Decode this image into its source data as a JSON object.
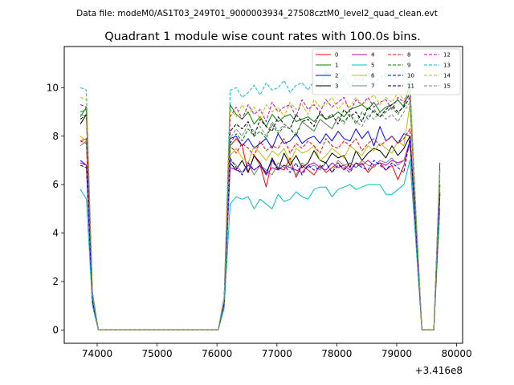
{
  "suptitle": "Data file: modeM0/AS1T03_249T01_9000003934_27508cztM0_level2_quad_clean.evt",
  "chart_data": {
    "type": "line",
    "title": "Quadrant 1 module wise count rates with 100.0s bins.",
    "xlabel": "",
    "ylabel": "",
    "x_offset_label": "+3.416e8",
    "xlim": [
      73450,
      80100
    ],
    "ylim": [
      -0.55,
      11.7
    ],
    "xticks": [
      74000,
      75000,
      76000,
      77000,
      78000,
      79000,
      80000
    ],
    "yticks": [
      0,
      2,
      4,
      6,
      8,
      10
    ],
    "grid": false,
    "legend_position": "top-right",
    "x": [
      73720,
      73820,
      73920,
      74020,
      74120,
      74220,
      74320,
      74420,
      74520,
      74620,
      74720,
      74820,
      74920,
      75020,
      75120,
      75220,
      75320,
      75420,
      75520,
      75620,
      75720,
      75820,
      75920,
      76020,
      76120,
      76220,
      76320,
      76420,
      76520,
      76620,
      76720,
      76820,
      76920,
      77020,
      77120,
      77220,
      77320,
      77420,
      77520,
      77620,
      77720,
      77820,
      77920,
      78020,
      78120,
      78220,
      78320,
      78420,
      78520,
      78620,
      78720,
      78820,
      78920,
      79020,
      79120,
      79220,
      79320,
      79420,
      79520,
      79620,
      79720
    ],
    "series": [
      {
        "name": "0",
        "color": "#ff0000",
        "dash": false,
        "values": [
          7.8,
          7.9,
          1.3,
          0,
          0,
          0,
          0,
          0,
          0,
          0,
          0,
          0,
          0,
          0,
          0,
          0,
          0,
          0,
          0,
          0,
          0,
          0,
          0,
          0,
          1.2,
          7.6,
          7.9,
          7.6,
          6.5,
          7.2,
          6.8,
          5.9,
          7.0,
          6.7,
          6.6,
          7.1,
          6.3,
          6.8,
          6.6,
          6.4,
          6.8,
          6.5,
          6.7,
          6.9,
          6.6,
          6.9,
          6.7,
          6.9,
          6.5,
          6.8,
          6.9,
          6.6,
          6.8,
          6.2,
          6.8,
          7.8,
          4.1,
          0,
          0,
          0,
          5.6
        ]
      },
      {
        "name": "1",
        "color": "#008000",
        "dash": false,
        "values": [
          8.8,
          9.2,
          1.5,
          0,
          0,
          0,
          0,
          0,
          0,
          0,
          0,
          0,
          0,
          0,
          0,
          0,
          0,
          0,
          0,
          0,
          0,
          0,
          0,
          0,
          1.3,
          9.3,
          8.9,
          8.7,
          9.0,
          8.5,
          8.8,
          8.4,
          8.9,
          8.6,
          8.8,
          8.9,
          8.6,
          8.7,
          8.8,
          8.6,
          8.9,
          8.7,
          8.8,
          9.0,
          8.8,
          9.1,
          9.2,
          9.3,
          9.1,
          9.4,
          9.0,
          9.2,
          9.3,
          9.5,
          9.2,
          10.2,
          4.6,
          0,
          0,
          0,
          6.9
        ]
      },
      {
        "name": "2",
        "color": "#0000ff",
        "dash": false,
        "values": [
          7.0,
          6.8,
          1.2,
          0,
          0,
          0,
          0,
          0,
          0,
          0,
          0,
          0,
          0,
          0,
          0,
          0,
          0,
          0,
          0,
          0,
          0,
          0,
          0,
          0,
          1.1,
          7.9,
          8.0,
          7.6,
          7.9,
          7.5,
          7.7,
          7.9,
          7.5,
          8.1,
          7.7,
          7.8,
          8.1,
          7.7,
          7.9,
          8.0,
          7.7,
          8.1,
          7.8,
          8.2,
          7.9,
          7.8,
          8.3,
          7.9,
          8.2,
          7.6,
          8.4,
          7.8,
          8.0,
          7.7,
          8.1,
          8.0,
          4.2,
          0,
          0,
          0,
          5.7
        ]
      },
      {
        "name": "3",
        "color": "#000000",
        "dash": false,
        "values": [
          8.5,
          8.9,
          1.4,
          0,
          0,
          0,
          0,
          0,
          0,
          0,
          0,
          0,
          0,
          0,
          0,
          0,
          0,
          0,
          0,
          0,
          0,
          0,
          0,
          0,
          1.2,
          6.9,
          6.6,
          7.0,
          6.5,
          7.2,
          6.9,
          6.4,
          7.1,
          6.6,
          7.3,
          6.8,
          7.2,
          6.7,
          6.9,
          7.4,
          7.0,
          6.9,
          7.3,
          7.1,
          7.2,
          6.7,
          7.4,
          7.0,
          7.3,
          7.5,
          7.4,
          7.1,
          7.6,
          7.2,
          7.5,
          8.0,
          4.3,
          0,
          0,
          0,
          6.0
        ]
      },
      {
        "name": "4",
        "color": "#bf00bf",
        "dash": false,
        "values": [
          6.9,
          6.8,
          1.2,
          0,
          0,
          0,
          0,
          0,
          0,
          0,
          0,
          0,
          0,
          0,
          0,
          0,
          0,
          0,
          0,
          0,
          0,
          0,
          0,
          0,
          1.0,
          6.7,
          6.6,
          6.5,
          6.8,
          6.6,
          6.8,
          6.4,
          6.7,
          6.6,
          6.8,
          6.7,
          6.6,
          6.5,
          6.8,
          6.9,
          6.7,
          6.6,
          6.9,
          6.7,
          6.8,
          6.6,
          6.9,
          6.8,
          7.0,
          6.8,
          6.9,
          6.8,
          7.0,
          6.9,
          7.0,
          7.8,
          4.1,
          0,
          0,
          0,
          5.7
        ]
      },
      {
        "name": "5",
        "color": "#00bfbf",
        "dash": false,
        "values": [
          5.8,
          5.4,
          1.0,
          0,
          0,
          0,
          0,
          0,
          0,
          0,
          0,
          0,
          0,
          0,
          0,
          0,
          0,
          0,
          0,
          0,
          0,
          0,
          0,
          0,
          0.9,
          5.2,
          5.5,
          5.4,
          5.5,
          5.0,
          5.4,
          5.2,
          5.0,
          5.6,
          5.3,
          5.4,
          5.7,
          5.5,
          5.4,
          5.8,
          5.9,
          5.9,
          5.5,
          5.8,
          5.9,
          6.0,
          5.8,
          5.9,
          6.0,
          6.0,
          6.0,
          5.6,
          5.6,
          5.8,
          6.0,
          7.0,
          3.6,
          0,
          0,
          0,
          5.0
        ]
      },
      {
        "name": "6",
        "color": "#bfbf00",
        "dash": false,
        "values": [
          8.0,
          7.8,
          1.3,
          0,
          0,
          0,
          0,
          0,
          0,
          0,
          0,
          0,
          0,
          0,
          0,
          0,
          0,
          0,
          0,
          0,
          0,
          0,
          0,
          0,
          1.2,
          7.2,
          7.5,
          7.1,
          6.9,
          7.6,
          7.3,
          7.0,
          7.4,
          7.2,
          7.5,
          6.9,
          7.5,
          7.3,
          7.4,
          7.6,
          7.0,
          7.2,
          7.5,
          7.3,
          7.1,
          7.6,
          7.4,
          7.2,
          7.6,
          7.4,
          7.7,
          7.5,
          7.3,
          7.8,
          7.6,
          9.3,
          4.8,
          0,
          0,
          0,
          5.9
        ]
      },
      {
        "name": "7",
        "color": "#808080",
        "dash": false,
        "values": [
          7.6,
          7.8,
          1.3,
          0,
          0,
          0,
          0,
          0,
          0,
          0,
          0,
          0,
          0,
          0,
          0,
          0,
          0,
          0,
          0,
          0,
          0,
          0,
          0,
          0,
          1.2,
          7.0,
          6.8,
          6.5,
          6.9,
          6.4,
          6.8,
          6.6,
          6.4,
          6.9,
          6.7,
          6.8,
          6.4,
          6.9,
          6.7,
          6.8,
          6.6,
          6.9,
          6.5,
          7.0,
          6.8,
          6.9,
          6.7,
          7.0,
          6.8,
          6.7,
          7.0,
          6.9,
          7.1,
          6.8,
          7.0,
          7.6,
          4.0,
          0,
          0,
          0,
          5.5
        ]
      },
      {
        "name": "8",
        "color": "#ff0000",
        "dash": true,
        "values": [
          7.8,
          7.7,
          1.3,
          0,
          0,
          0,
          0,
          0,
          0,
          0,
          0,
          0,
          0,
          0,
          0,
          0,
          0,
          0,
          0,
          0,
          0,
          0,
          0,
          0,
          1.2,
          7.6,
          7.3,
          7.7,
          7.5,
          7.2,
          7.8,
          7.4,
          7.6,
          7.5,
          7.9,
          7.3,
          7.7,
          7.5,
          7.8,
          7.6,
          7.3,
          7.9,
          7.6,
          7.5,
          7.8,
          7.6,
          7.9,
          7.4,
          7.7,
          7.9,
          7.6,
          7.8,
          8.0,
          7.7,
          7.9,
          8.3,
          4.3,
          0,
          0,
          0,
          5.8
        ]
      },
      {
        "name": "9",
        "color": "#008000",
        "dash": true,
        "values": [
          9.0,
          9.1,
          1.5,
          0,
          0,
          0,
          0,
          0,
          0,
          0,
          0,
          0,
          0,
          0,
          0,
          0,
          0,
          0,
          0,
          0,
          0,
          0,
          0,
          0,
          1.3,
          7.7,
          8.1,
          7.8,
          8.3,
          8.0,
          8.2,
          7.9,
          8.5,
          8.1,
          8.4,
          8.3,
          8.0,
          8.6,
          8.4,
          8.2,
          8.7,
          8.5,
          8.3,
          8.8,
          8.6,
          8.9,
          8.5,
          9.0,
          8.7,
          9.1,
          8.8,
          9.0,
          9.2,
          8.9,
          9.3,
          9.8,
          4.8,
          0,
          0,
          0,
          6.7
        ]
      },
      {
        "name": "10",
        "color": "#0000ff",
        "dash": true,
        "values": [
          6.8,
          6.7,
          1.2,
          0,
          0,
          0,
          0,
          0,
          0,
          0,
          0,
          0,
          0,
          0,
          0,
          0,
          0,
          0,
          0,
          0,
          0,
          0,
          0,
          0,
          1.1,
          7.1,
          6.7,
          6.4,
          6.9,
          6.6,
          6.8,
          6.5,
          7.0,
          6.6,
          6.8,
          6.5,
          6.9,
          6.4,
          6.8,
          6.6,
          6.7,
          6.9,
          6.5,
          6.8,
          6.7,
          6.5,
          6.9,
          6.7,
          6.6,
          7.0,
          6.8,
          6.6,
          6.9,
          6.7,
          6.5,
          7.9,
          4.2,
          0,
          0,
          0,
          5.6
        ]
      },
      {
        "name": "11",
        "color": "#000000",
        "dash": true,
        "values": [
          8.7,
          8.9,
          1.4,
          0,
          0,
          0,
          0,
          0,
          0,
          0,
          0,
          0,
          0,
          0,
          0,
          0,
          0,
          0,
          0,
          0,
          0,
          0,
          0,
          0,
          1.2,
          8.2,
          8.5,
          8.3,
          8.6,
          8.0,
          8.7,
          8.4,
          8.2,
          8.8,
          8.5,
          8.3,
          8.9,
          8.6,
          8.7,
          8.4,
          9.0,
          8.7,
          8.9,
          8.5,
          9.1,
          8.8,
          9.0,
          8.6,
          9.2,
          9.0,
          8.8,
          9.1,
          9.3,
          9.0,
          9.2,
          9.6,
          4.7,
          0,
          0,
          0,
          6.5
        ]
      },
      {
        "name": "12",
        "color": "#bf00bf",
        "dash": true,
        "values": [
          9.3,
          9.2,
          1.5,
          0,
          0,
          0,
          0,
          0,
          0,
          0,
          0,
          0,
          0,
          0,
          0,
          0,
          0,
          0,
          0,
          0,
          0,
          0,
          0,
          0,
          1.3,
          8.8,
          9.2,
          8.7,
          9.3,
          8.9,
          9.1,
          8.6,
          9.4,
          9.0,
          9.2,
          9.3,
          8.8,
          9.5,
          9.1,
          9.3,
          9.0,
          9.5,
          9.2,
          9.4,
          9.6,
          9.0,
          9.5,
          9.3,
          9.6,
          9.2,
          9.4,
          9.5,
          9.1,
          9.6,
          9.4,
          9.7,
          4.8,
          0,
          0,
          0,
          6.6
        ]
      },
      {
        "name": "13",
        "color": "#00bfbf",
        "dash": true,
        "values": [
          10.0,
          9.9,
          1.6,
          0,
          0,
          0,
          0,
          0,
          0,
          0,
          0,
          0,
          0,
          0,
          0,
          0,
          0,
          0,
          0,
          0,
          0,
          0,
          0,
          0,
          1.4,
          9.9,
          10.0,
          9.6,
          9.8,
          10.1,
          9.7,
          10.2,
          9.9,
          10.0,
          10.3,
          9.8,
          10.1,
          10.2,
          9.9,
          10.3,
          10.0,
          10.7,
          10.1,
          10.2,
          10.5,
          10.0,
          10.4,
          10.3,
          10.6,
          10.2,
          10.4,
          10.6,
          10.3,
          10.5,
          10.7,
          10.2,
          5.0,
          0,
          0,
          0,
          6.7
        ]
      },
      {
        "name": "14",
        "color": "#bfbf00",
        "dash": true,
        "values": [
          9.6,
          9.5,
          1.5,
          0,
          0,
          0,
          0,
          0,
          0,
          0,
          0,
          0,
          0,
          0,
          0,
          0,
          0,
          0,
          0,
          0,
          0,
          0,
          0,
          0,
          1.3,
          9.1,
          8.8,
          9.3,
          8.9,
          9.2,
          8.7,
          9.3,
          9.0,
          9.2,
          8.8,
          9.4,
          9.1,
          9.3,
          8.9,
          9.5,
          9.2,
          9.3,
          9.6,
          9.1,
          9.4,
          9.2,
          9.6,
          9.3,
          9.5,
          9.7,
          9.3,
          9.6,
          9.4,
          9.8,
          9.5,
          9.9,
          4.9,
          0,
          0,
          0,
          6.6
        ]
      },
      {
        "name": "15",
        "color": "#808080",
        "dash": true,
        "values": [
          8.9,
          8.8,
          1.4,
          0,
          0,
          0,
          0,
          0,
          0,
          0,
          0,
          0,
          0,
          0,
          0,
          0,
          0,
          0,
          0,
          0,
          0,
          0,
          0,
          0,
          1.2,
          7.9,
          8.3,
          8.0,
          8.5,
          8.2,
          8.4,
          8.0,
          8.6,
          8.2,
          8.5,
          8.3,
          8.1,
          8.6,
          8.4,
          8.2,
          8.7,
          8.5,
          8.3,
          8.8,
          8.5,
          8.9,
          8.6,
          8.4,
          8.9,
          8.7,
          9.0,
          8.7,
          8.9,
          8.6,
          9.0,
          9.4,
          4.6,
          0,
          0,
          0,
          6.3
        ]
      }
    ]
  }
}
